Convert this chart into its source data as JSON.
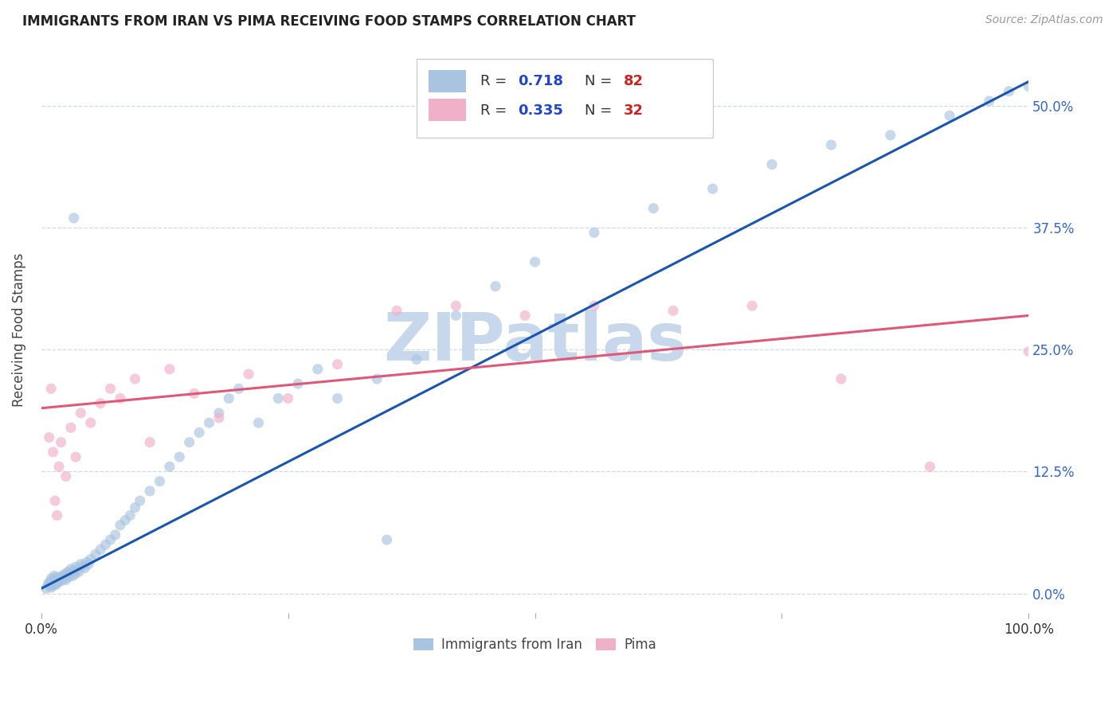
{
  "title": "IMMIGRANTS FROM IRAN VS PIMA RECEIVING FOOD STAMPS CORRELATION CHART",
  "source": "Source: ZipAtlas.com",
  "ylabel": "Receiving Food Stamps",
  "ytick_labels": [
    "0.0%",
    "12.5%",
    "25.0%",
    "37.5%",
    "50.0%"
  ],
  "ytick_values": [
    0.0,
    0.125,
    0.25,
    0.375,
    0.5
  ],
  "xlim": [
    0.0,
    1.0
  ],
  "ylim": [
    -0.02,
    0.56
  ],
  "legend_blue_R": 0.718,
  "legend_blue_N": 82,
  "legend_pink_R": 0.335,
  "legend_pink_N": 32,
  "blue_color": "#a8c4e0",
  "pink_color": "#f0b0c8",
  "blue_line_color": "#1a56b0",
  "pink_line_color": "#e05878",
  "legend_R_color": "#2244cc",
  "legend_N_color": "#cc2222",
  "watermark": "ZIPatlas",
  "watermark_color": "#c8d8ec",
  "background_color": "#ffffff",
  "blue_scatter_x": [
    0.005,
    0.007,
    0.008,
    0.009,
    0.01,
    0.01,
    0.011,
    0.012,
    0.013,
    0.013,
    0.014,
    0.015,
    0.015,
    0.016,
    0.017,
    0.018,
    0.019,
    0.02,
    0.021,
    0.022,
    0.023,
    0.024,
    0.025,
    0.026,
    0.027,
    0.028,
    0.029,
    0.03,
    0.032,
    0.033,
    0.034,
    0.035,
    0.036,
    0.038,
    0.04,
    0.042,
    0.044,
    0.046,
    0.048,
    0.05,
    0.055,
    0.06,
    0.065,
    0.07,
    0.075,
    0.08,
    0.085,
    0.09,
    0.095,
    0.1,
    0.11,
    0.12,
    0.13,
    0.14,
    0.15,
    0.16,
    0.17,
    0.18,
    0.19,
    0.2,
    0.22,
    0.24,
    0.26,
    0.28,
    0.3,
    0.34,
    0.38,
    0.42,
    0.46,
    0.5,
    0.56,
    0.62,
    0.68,
    0.74,
    0.8,
    0.86,
    0.92,
    0.96,
    0.98,
    1.0,
    0.033,
    0.35
  ],
  "blue_scatter_y": [
    0.005,
    0.01,
    0.008,
    0.012,
    0.006,
    0.015,
    0.01,
    0.008,
    0.014,
    0.018,
    0.012,
    0.009,
    0.016,
    0.011,
    0.014,
    0.012,
    0.017,
    0.015,
    0.013,
    0.018,
    0.016,
    0.02,
    0.014,
    0.019,
    0.022,
    0.017,
    0.021,
    0.025,
    0.018,
    0.023,
    0.02,
    0.027,
    0.024,
    0.022,
    0.03,
    0.028,
    0.026,
    0.032,
    0.03,
    0.035,
    0.04,
    0.045,
    0.05,
    0.055,
    0.06,
    0.07,
    0.075,
    0.08,
    0.088,
    0.095,
    0.105,
    0.115,
    0.13,
    0.14,
    0.155,
    0.165,
    0.175,
    0.185,
    0.2,
    0.21,
    0.175,
    0.2,
    0.215,
    0.23,
    0.2,
    0.22,
    0.24,
    0.285,
    0.315,
    0.34,
    0.37,
    0.395,
    0.415,
    0.44,
    0.46,
    0.47,
    0.49,
    0.505,
    0.515,
    0.52,
    0.385,
    0.055
  ],
  "pink_scatter_x": [
    0.008,
    0.01,
    0.012,
    0.014,
    0.016,
    0.018,
    0.02,
    0.025,
    0.03,
    0.035,
    0.04,
    0.05,
    0.06,
    0.07,
    0.08,
    0.095,
    0.11,
    0.13,
    0.155,
    0.18,
    0.21,
    0.25,
    0.3,
    0.36,
    0.42,
    0.49,
    0.56,
    0.64,
    0.72,
    0.81,
    0.9,
    1.0
  ],
  "pink_scatter_y": [
    0.16,
    0.21,
    0.145,
    0.095,
    0.08,
    0.13,
    0.155,
    0.12,
    0.17,
    0.14,
    0.185,
    0.175,
    0.195,
    0.21,
    0.2,
    0.22,
    0.155,
    0.23,
    0.205,
    0.18,
    0.225,
    0.2,
    0.235,
    0.29,
    0.295,
    0.285,
    0.295,
    0.29,
    0.295,
    0.22,
    0.13,
    0.248
  ],
  "blue_trendline_x": [
    0.0,
    1.0
  ],
  "blue_trendline_y_start": 0.005,
  "blue_trendline_y_end": 0.525,
  "pink_trendline_x": [
    0.0,
    1.0
  ],
  "pink_trendline_y_start": 0.19,
  "pink_trendline_y_end": 0.285,
  "grid_color": "#d0d8e8",
  "grid_style": "--",
  "marker_size": 90,
  "marker_alpha": 0.65,
  "legend_label_blue": "Immigrants from Iran",
  "legend_label_pink": "Pima"
}
